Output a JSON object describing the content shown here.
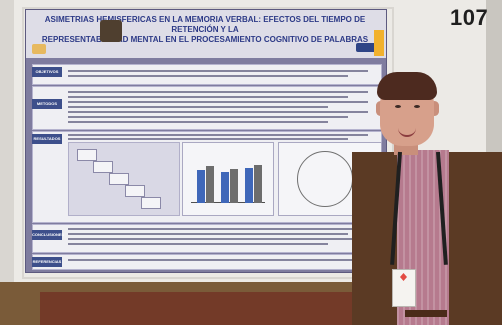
{
  "poster": {
    "number": "107",
    "title_line_1": "ASIMETRIAS HEMISFERICAS EN LA MEMORIA VERBAL: EFECTOS DEL TIEMPO DE RETENCIÓN Y LA",
    "title_line_2": "REPRESENTABILIDAD MENTAL EN EL PROCESAMIENTO COGNITIVO DE PALABRAS",
    "sections": {
      "objectives": "OBJETIVOS",
      "methods": "METODOS",
      "results": "RESULTADOS",
      "conclusions": "CONCLUSIONES",
      "references": "REFERENCIAS"
    }
  }
}
